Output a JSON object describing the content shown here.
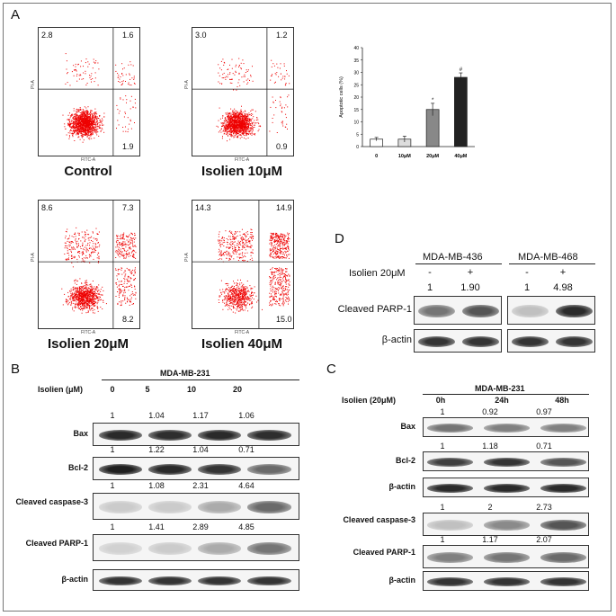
{
  "panels": {
    "a": "A",
    "b": "B",
    "c": "C",
    "d": "D"
  },
  "flow": [
    {
      "caption": "Control",
      "ul": "2.8",
      "ur": "1.6",
      "lr": "1.9",
      "xlabel": "FITC-A",
      "ylabel": "PI-A"
    },
    {
      "caption": "Isolien 10μM",
      "ul": "3.0",
      "ur": "1.2",
      "lr": "0.9",
      "xlabel": "FITC-A",
      "ylabel": "PI-A"
    },
    {
      "caption": "Isolien 20μM",
      "ul": "8.6",
      "ur": "7.3",
      "lr": "8.2",
      "xlabel": "FITC-A",
      "ylabel": "PI-A"
    },
    {
      "caption": "Isolien 40μM",
      "ul": "14.3",
      "ur": "14.9",
      "lr": "15.0",
      "xlabel": "FITC-A",
      "ylabel": "PI-A"
    }
  ],
  "chart_data": {
    "type": "bar",
    "categories": [
      "0",
      "10μM",
      "20μM",
      "40μM"
    ],
    "values": [
      3,
      3,
      15,
      28
    ],
    "errors": [
      0.7,
      1.2,
      2.5,
      1.8
    ],
    "colors": [
      "#ffffff",
      "#dddddd",
      "#888888",
      "#222222"
    ],
    "markers": [
      "",
      "",
      "*",
      "#"
    ],
    "ylabel": "Apoptotic cells (%)",
    "ylim": [
      0,
      40
    ],
    "yticks": [
      "0",
      "5",
      "10",
      "15",
      "20",
      "25",
      "30",
      "35",
      "40"
    ]
  },
  "panel_b": {
    "cell_line": "MDA-MB-231",
    "treatment_label": "Isolien (μM)",
    "doses": [
      "0",
      "5",
      "10",
      "20"
    ],
    "rows": [
      {
        "label": "Bax",
        "values": [
          "1",
          "1.04",
          "1.17",
          "1.06"
        ],
        "intensity": [
          0.9,
          0.88,
          0.9,
          0.88
        ]
      },
      {
        "label": "Bcl-2",
        "values": [
          "1",
          "1.22",
          "1.04",
          "0.71"
        ],
        "intensity": [
          0.95,
          0.9,
          0.85,
          0.6
        ]
      },
      {
        "label": "Cleaved caspase-3",
        "values": [
          "1",
          "1.08",
          "2.31",
          "4.64"
        ],
        "intensity": [
          0.15,
          0.15,
          0.3,
          0.6
        ]
      },
      {
        "label": "Cleaved PARP-1",
        "values": [
          "1",
          "1.41",
          "2.89",
          "4.85"
        ],
        "intensity": [
          0.12,
          0.15,
          0.3,
          0.55
        ]
      },
      {
        "label": "β-actin",
        "values": [],
        "intensity": [
          0.85,
          0.85,
          0.85,
          0.85
        ]
      }
    ]
  },
  "panel_c": {
    "cell_line": "MDA-MB-231",
    "treatment_label": "Isolien (20μM)",
    "times": [
      "0h",
      "24h",
      "48h"
    ],
    "rows": [
      {
        "label": "Bax",
        "values": [
          "1",
          "0.92",
          "0.97"
        ],
        "intensity": [
          0.55,
          0.5,
          0.5
        ]
      },
      {
        "label": "Bcl-2",
        "values": [
          "1",
          "1.18",
          "0.71"
        ],
        "intensity": [
          0.8,
          0.85,
          0.7
        ]
      },
      {
        "label": "β-actin",
        "values": [],
        "intensity": [
          0.9,
          0.9,
          0.9
        ]
      },
      {
        "label": "Cleaved caspase-3",
        "values": [
          "1",
          "2",
          "2.73"
        ],
        "intensity": [
          0.2,
          0.45,
          0.7
        ]
      },
      {
        "label": "Cleaved PARP-1",
        "values": [
          "1",
          "1.17",
          "2.07"
        ],
        "intensity": [
          0.5,
          0.55,
          0.6
        ]
      },
      {
        "label": "β-actin",
        "values": [],
        "intensity": [
          0.85,
          0.85,
          0.85
        ]
      }
    ]
  },
  "panel_d": {
    "lines": [
      "MDA-MB-436",
      "MDA-MB-468"
    ],
    "treatment_label": "Isolien 20μM",
    "signs": [
      "-",
      "+",
      "-",
      "+"
    ],
    "values": [
      "1",
      "1.90",
      "1",
      "4.98"
    ],
    "rows": [
      {
        "label": "Cleaved PARP-1",
        "intensity": [
          0.55,
          0.7,
          0.2,
          0.9
        ]
      },
      {
        "label": "β-actin",
        "intensity": [
          0.85,
          0.85,
          0.85,
          0.85
        ]
      }
    ]
  }
}
